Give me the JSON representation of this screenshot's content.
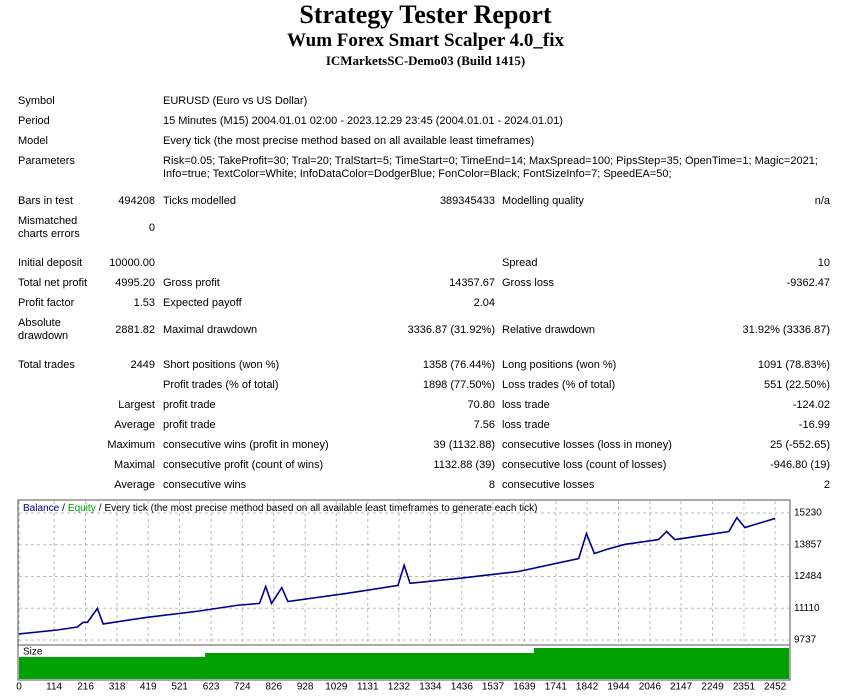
{
  "header": {
    "title": "Strategy Tester Report",
    "subtitle": "Wum Forex Smart Scalper 4.0_fix",
    "account": "ICMarketsSC-Demo03 (Build 1415)"
  },
  "table": {
    "rows": [
      [
        "Symbol",
        null,
        "EURUSD (Euro vs US Dollar)",
        null,
        null,
        null
      ],
      [
        "Period",
        null,
        "15 Minutes (M15) 2004.01.01 02:00 - 2023.12.29 23:45 (2004.01.01 - 2024.01.01)",
        null,
        null,
        null
      ],
      [
        "Model",
        null,
        "Every tick (the most precise method based on all available least timeframes)",
        null,
        null,
        null
      ],
      [
        "Parameters",
        null,
        "Risk=0.05; TakeProfit=30; Tral=20; TralStart=5; TimeStart=0; TimeEnd=14; MaxSpread=100; PipsStep=35; OpenTime=1; Magic=2021;\nInfo=true; TextColor=White; InfoDataColor=DodgerBlue; FonColor=Black; FontSizeInfo=7; SpeedEA=50;",
        null,
        null,
        null
      ],
      [
        "Bars in test",
        "494208",
        "Ticks modelled",
        "389345433",
        "Modelling quality",
        "n/a"
      ],
      [
        "Mismatched charts errors",
        "0",
        null,
        null,
        null,
        null
      ],
      [
        "Initial deposit",
        "10000.00",
        null,
        null,
        "Spread",
        "10"
      ],
      [
        "Total net profit",
        "4995.20",
        "Gross profit",
        "14357.67",
        "Gross loss",
        "-9362.47"
      ],
      [
        "Profit factor",
        "1.53",
        "Expected payoff",
        "2.04",
        null,
        null
      ],
      [
        "Absolute drawdown",
        "2881.82",
        "Maximal drawdown",
        "3336.87 (31.92%)",
        "Relative drawdown",
        "31.92% (3336.87)"
      ],
      [
        "Total trades",
        "2449",
        "Short positions (won %)",
        "1358 (76.44%)",
        "Long positions (won %)",
        "1091 (78.83%)"
      ],
      [
        null,
        null,
        "Profit trades (% of total)",
        "1898 (77.50%)",
        "Loss trades (% of total)",
        "551 (22.50%)"
      ],
      [
        null,
        "Largest",
        "profit trade",
        "70.80",
        "loss trade",
        "-124.02"
      ],
      [
        null,
        "Average",
        "profit trade",
        "7.56",
        "loss trade",
        "-16.99"
      ],
      [
        null,
        "Maximum",
        "consecutive wins (profit in money)",
        "39 (1132.88)",
        "consecutive losses (loss in money)",
        "25 (-552.65)"
      ],
      [
        null,
        "Maximal",
        "consecutive profit (count of wins)",
        "1132.88 (39)",
        "consecutive loss (count of losses)",
        "-946.80 (19)"
      ],
      [
        null,
        "Average",
        "consecutive wins",
        "8",
        "consecutive losses",
        "2"
      ]
    ]
  },
  "chart_data": {
    "type": "line",
    "legend": [
      {
        "text": "Balance",
        "color": "#00008b"
      },
      {
        "text": "/",
        "color": "#000000"
      },
      {
        "text": "Equity",
        "color": "#00a000"
      },
      {
        "text": "/",
        "color": "#000000"
      },
      {
        "text": "Every tick (the most precise method based on all available least timeframes to generate each tick)",
        "color": "#000000"
      }
    ],
    "size_label": "Size",
    "x": [
      0,
      124,
      189,
      208,
      222,
      254,
      273,
      416,
      579,
      709,
      780,
      800,
      819,
      852,
      872,
      1067,
      1229,
      1249,
      1268,
      1424,
      1620,
      1815,
      1840,
      1866,
      1905,
      1964,
      2074,
      2100,
      2127,
      2302,
      2328,
      2354,
      2452
    ],
    "series": [
      {
        "color": "#00008b",
        "values": [
          10000,
          10170,
          10300,
          10500,
          10500,
          11100,
          10430,
          10720,
          10980,
          11240,
          11320,
          12050,
          11320,
          12000,
          11400,
          11760,
          12100,
          12970,
          12190,
          12400,
          12700,
          13260,
          14340,
          13480,
          13650,
          13870,
          14080,
          14430,
          14080,
          14430,
          15030,
          14600,
          14995
        ]
      }
    ],
    "xlim": [
      0,
      2497
    ],
    "ylim": [
      9564,
      15749
    ],
    "xticks": [
      0,
      114,
      216,
      318,
      419,
      521,
      623,
      724,
      826,
      928,
      1029,
      1131,
      1232,
      1334,
      1436,
      1537,
      1639,
      1741,
      1842,
      1944,
      2046,
      2147,
      2249,
      2351,
      2452
    ],
    "yticks": [
      9737,
      11110,
      12484,
      13857,
      15230
    ],
    "grid": true
  }
}
